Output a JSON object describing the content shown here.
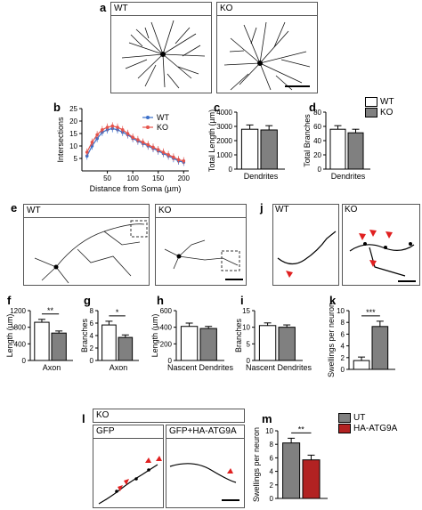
{
  "panels": {
    "a": "a",
    "b": "b",
    "c": "c",
    "d": "d",
    "e": "e",
    "f": "f",
    "g": "g",
    "h": "h",
    "i": "i",
    "j": "j",
    "k": "k",
    "l": "l",
    "m": "m"
  },
  "genotypes": {
    "wt": "WT",
    "ko": "KO"
  },
  "panel_l": {
    "header": "KO",
    "left": "GFP",
    "right": "GFP+HA-ATG9A"
  },
  "legend_cd": [
    {
      "name": "WT",
      "color": "#ffffff"
    },
    {
      "name": "KO",
      "color": "#808080"
    }
  ],
  "legend_m": [
    {
      "name": "UT",
      "color": "#808080"
    },
    {
      "name": "HA-ATG9A",
      "color": "#b22222"
    }
  ],
  "colors": {
    "wt_line": "#3a6fc9",
    "ko_line": "#e5534b",
    "ko_bar": "#808080",
    "atg9a_bar": "#b22222"
  },
  "chart_data": [
    {
      "id": "b",
      "type": "line",
      "xlabel": "Distance from Soma (µm)",
      "ylabel": "Intersections",
      "xlim": [
        0,
        210
      ],
      "ylim": [
        0,
        25
      ],
      "xticks": [
        50,
        100,
        150,
        200
      ],
      "yticks": [
        5,
        10,
        15,
        20,
        25
      ],
      "x": [
        10,
        20,
        30,
        40,
        50,
        60,
        70,
        80,
        90,
        100,
        110,
        120,
        130,
        140,
        150,
        160,
        170,
        180,
        190,
        200
      ],
      "series": [
        {
          "name": "WT",
          "values": [
            6,
            10,
            13,
            15.5,
            16.5,
            17,
            16.5,
            15.5,
            14.5,
            13,
            12,
            11,
            10,
            9,
            8,
            7,
            6,
            5,
            4,
            3.5
          ]
        },
        {
          "name": "KO",
          "values": [
            7.5,
            11.5,
            14.5,
            16.5,
            17.5,
            18,
            17.5,
            16.5,
            15,
            13.5,
            12.5,
            11.5,
            10.5,
            9.5,
            8.5,
            7.5,
            6.5,
            5.5,
            4.5,
            4
          ]
        }
      ]
    },
    {
      "id": "c",
      "type": "bar",
      "ylabel": "Total Length (µm)",
      "xlabel": "Dendrites",
      "ylim": [
        0,
        4000
      ],
      "yticks": [
        0,
        1000,
        2000,
        3000,
        4000
      ],
      "categories": [
        "WT",
        "KO"
      ],
      "values": [
        2800,
        2750
      ],
      "errors": [
        300,
        300
      ]
    },
    {
      "id": "d",
      "type": "bar",
      "ylabel": "Total Branches",
      "xlabel": "Dendrites",
      "ylim": [
        0,
        80
      ],
      "yticks": [
        0,
        20,
        40,
        60,
        80
      ],
      "categories": [
        "WT",
        "KO"
      ],
      "values": [
        56,
        51
      ],
      "errors": [
        5,
        5
      ]
    },
    {
      "id": "f",
      "type": "bar",
      "ylabel": "Length (µm)",
      "xlabel": "Axon",
      "ylim": [
        0,
        1200
      ],
      "yticks": [
        0,
        400,
        800,
        1200
      ],
      "categories": [
        "WT",
        "KO"
      ],
      "values": [
        920,
        660
      ],
      "errors": [
        70,
        50
      ],
      "significance": "**"
    },
    {
      "id": "g",
      "type": "bar",
      "ylabel": "Branches",
      "xlabel": "Axon",
      "ylim": [
        0,
        8
      ],
      "yticks": [
        0,
        2,
        4,
        6,
        8
      ],
      "categories": [
        "WT",
        "KO"
      ],
      "values": [
        5.7,
        3.7
      ],
      "errors": [
        0.6,
        0.4
      ],
      "significance": "*"
    },
    {
      "id": "h",
      "type": "bar",
      "ylabel": "Length (µm)",
      "xlabel": "Nascent Dendrites",
      "ylim": [
        0,
        600
      ],
      "yticks": [
        0,
        200,
        400,
        600
      ],
      "categories": [
        "WT",
        "KO"
      ],
      "values": [
        410,
        385
      ],
      "errors": [
        40,
        25
      ]
    },
    {
      "id": "i",
      "type": "bar",
      "ylabel": "Branches",
      "xlabel": "Nascent Dendrites",
      "ylim": [
        0,
        15
      ],
      "yticks": [
        0,
        5,
        10,
        15
      ],
      "categories": [
        "WT",
        "KO"
      ],
      "values": [
        10.5,
        10
      ],
      "errors": [
        0.8,
        0.7
      ]
    },
    {
      "id": "k",
      "type": "bar",
      "ylabel": "Swellings per neuron",
      "ylim": [
        0,
        10
      ],
      "yticks": [
        0,
        2,
        4,
        6,
        8,
        10
      ],
      "categories": [
        "WT",
        "KO"
      ],
      "values": [
        1.5,
        7.3
      ],
      "errors": [
        0.6,
        0.9
      ],
      "significance": "***"
    },
    {
      "id": "m",
      "type": "bar",
      "ylabel": "Swellings per neuron",
      "ylim": [
        0,
        10
      ],
      "yticks": [
        0,
        2,
        4,
        6,
        8,
        10
      ],
      "categories": [
        "UT",
        "HA-ATG9A"
      ],
      "values": [
        8.2,
        5.7
      ],
      "errors": [
        0.7,
        0.7
      ],
      "significance": "**"
    }
  ]
}
